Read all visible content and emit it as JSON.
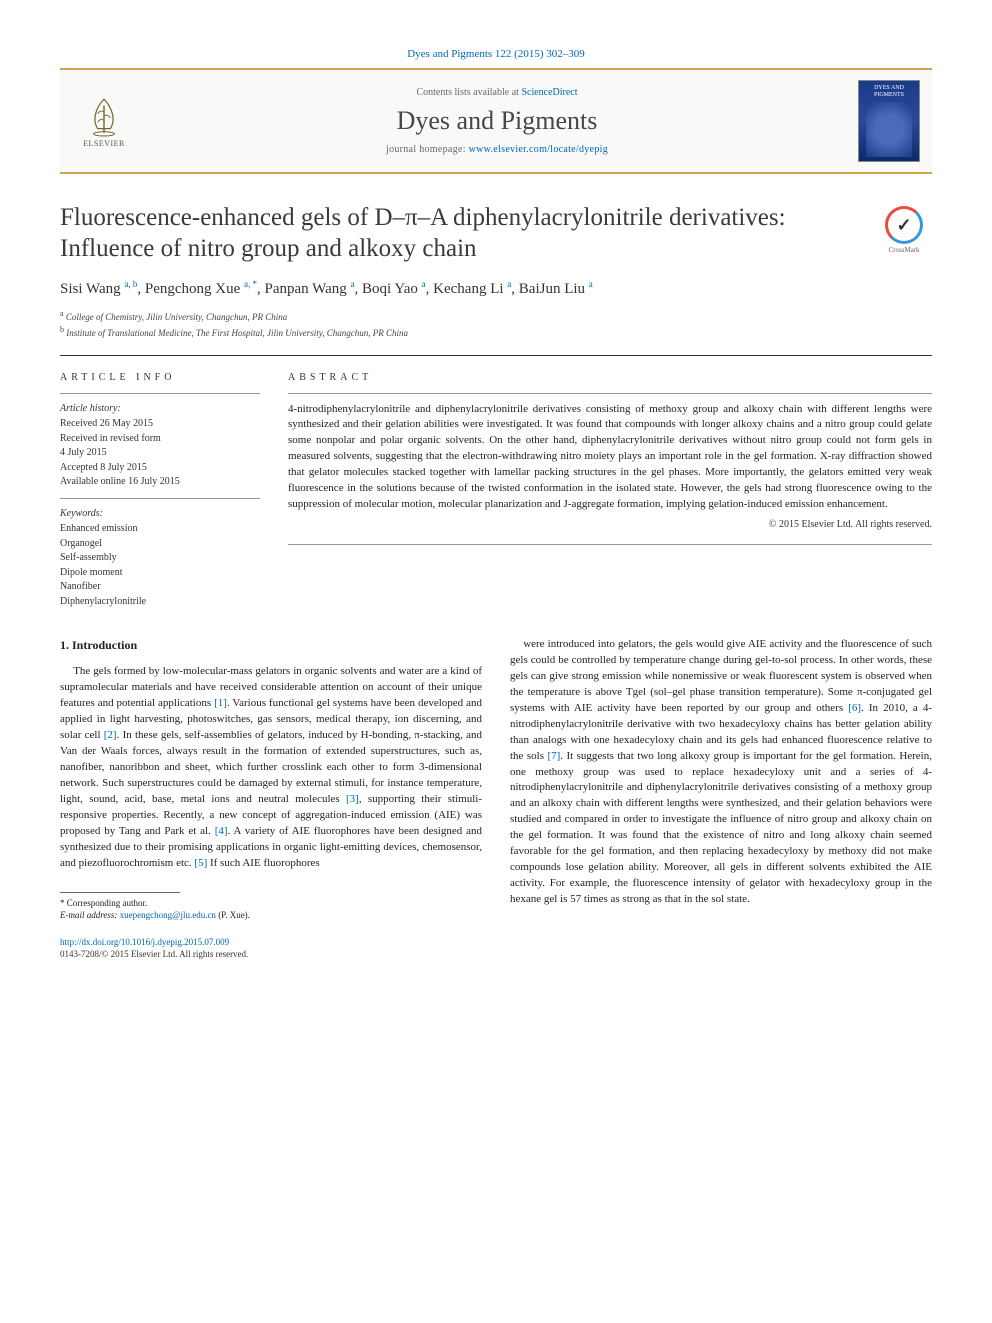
{
  "citation": "Dyes and Pigments 122 (2015) 302–309",
  "header": {
    "contents_prefix": "Contents lists available at ",
    "contents_link": "ScienceDirect",
    "journal_name": "Dyes and Pigments",
    "homepage_prefix": "journal homepage: ",
    "homepage_url": "www.elsevier.com/locate/dyepig",
    "publisher_label": "ELSEVIER",
    "cover_label": "DYES AND PIGMENTS"
  },
  "title": "Fluorescence-enhanced gels of D–π–A diphenylacrylonitrile derivatives: Influence of nitro group and alkoxy chain",
  "crossmark_label": "CrossMark",
  "authors_html": "Sisi Wang <sup>a, b</sup>, Pengchong Xue <sup>a, *</sup>, Panpan Wang <sup>a</sup>, Boqi Yao <sup>a</sup>, Kechang Li <sup>a</sup>, BaiJun Liu <sup>a</sup>",
  "affiliations": {
    "a": "a College of Chemistry, Jilin University, Changchun, PR China",
    "b": "b Institute of Translational Medicine, The First Hospital, Jilin University, Changchun, PR China"
  },
  "info": {
    "heading": "ARTICLE INFO",
    "history_head": "Article history:",
    "history": [
      "Received 26 May 2015",
      "Received in revised form",
      "4 July 2015",
      "Accepted 8 July 2015",
      "Available online 16 July 2015"
    ],
    "keywords_head": "Keywords:",
    "keywords": [
      "Enhanced emission",
      "Organogel",
      "Self-assembly",
      "Dipole moment",
      "Nanofiber",
      "Diphenylacrylonitrile"
    ]
  },
  "abstract": {
    "heading": "ABSTRACT",
    "text": "4-nitrodiphenylacrylonitrile and diphenylacrylonitrile derivatives consisting of methoxy group and alkoxy chain with different lengths were synthesized and their gelation abilities were investigated. It was found that compounds with longer alkoxy chains and a nitro group could gelate some nonpolar and polar organic solvents. On the other hand, diphenylacrylonitrile derivatives without nitro group could not form gels in measured solvents, suggesting that the electron-withdrawing nitro moiety plays an important role in the gel formation. X-ray diffraction showed that gelator molecules stacked together with lamellar packing structures in the gel phases. More importantly, the gelators emitted very weak fluorescence in the solutions because of the twisted conformation in the isolated state. However, the gels had strong fluorescence owing to the suppression of molecular motion, molecular planarization and J-aggregate formation, implying gelation-induced emission enhancement.",
    "copyright": "© 2015 Elsevier Ltd. All rights reserved."
  },
  "intro": {
    "heading": "1. Introduction",
    "col1": "The gels formed by low-molecular-mass gelators in organic solvents and water are a kind of supramolecular materials and have received considerable attention on account of their unique features and potential applications [1]. Various functional gel systems have been developed and applied in light harvesting, photoswitches, gas sensors, medical therapy, ion discerning, and solar cell [2]. In these gels, self-assemblies of gelators, induced by H-bonding, π-stacking, and Van der Waals forces, always result in the formation of extended superstructures, such as, nanofiber, nanoribbon and sheet, which further crosslink each other to form 3-dimensional network. Such superstructures could be damaged by external stimuli, for instance temperature, light, sound, acid, base, metal ions and neutral molecules [3], supporting their stimuli-responsive properties. Recently, a new concept of aggregation-induced emission (AIE) was proposed by Tang and Park et al. [4]. A variety of AIE fluorophores have been designed and synthesized due to their promising applications in organic light-emitting devices, chemosensor, and piezofluorochromism etc. [5] If such AIE fluorophores",
    "col2": "were introduced into gelators, the gels would give AIE activity and the fluorescence of such gels could be controlled by temperature change during gel-to-sol process. In other words, these gels can give strong emission while nonemissive or weak fluorescent system is observed when the temperature is above Tgel (sol–gel phase transition temperature). Some π-conjugated gel systems with AIE activity have been reported by our group and others [6]. In 2010, a 4-nitrodiphenylacrylonitrile derivative with two hexadecyloxy chains has better gelation ability than analogs with one hexadecyloxy chain and its gels had enhanced fluorescence relative to the sols [7]. It suggests that two long alkoxy group is important for the gel formation. Herein, one methoxy group was used to replace hexadecyloxy unit and a series of 4-nitrodiphenylacrylonitrile and diphenylacrylonitrile derivatives consisting of a methoxy group and an alkoxy chain with different lengths were synthesized, and their gelation behaviors were studied and compared in order to investigate the influence of nitro group and alkoxy chain on the gel formation. It was found that the existence of nitro and long alkoxy chain seemed favorable for the gel formation, and then replacing hexadecyloxy by methoxy did not make compounds lose gelation ability. Moreover, all gels in different solvents exhibited the AIE activity. For example, the fluorescence intensity of gelator with hexadecyloxy group in the hexane gel is 57 times as strong as that in the sol state."
  },
  "footer": {
    "corr_label": "* Corresponding author.",
    "email_label": "E-mail address: ",
    "email": "xuepengchong@jlu.edu.cn",
    "email_suffix": " (P. Xue).",
    "doi_url": "http://dx.doi.org/10.1016/j.dyepig.2015.07.009",
    "issn_line": "0143-7208/© 2015 Elsevier Ltd. All rights reserved."
  },
  "colors": {
    "link": "#0066b3",
    "accent_rule": "#d4a04c",
    "text": "#222222"
  }
}
